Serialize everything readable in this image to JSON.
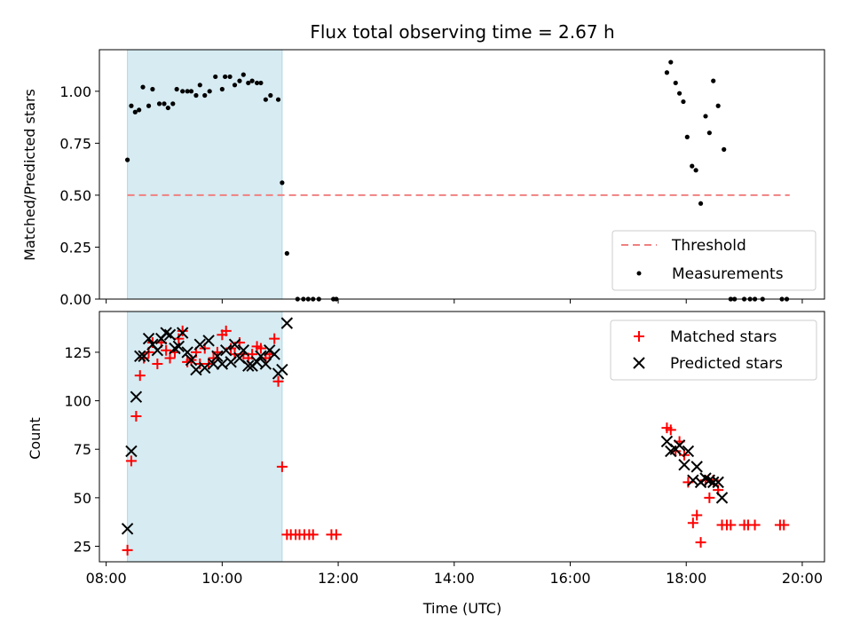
{
  "chart_data": [
    {
      "type": "scatter",
      "title": "Flux total observing time = 2.67 h",
      "xlabel": "",
      "ylabel": "Matched/Predicted stars",
      "xlim": [
        "07:53",
        "20:23"
      ],
      "ylim": [
        0.0,
        1.2
      ],
      "x_ticks": [
        "08:00",
        "10:00",
        "12:00",
        "14:00",
        "16:00",
        "18:00",
        "20:00"
      ],
      "y_ticks": [
        "0.00",
        "0.25",
        "0.50",
        "0.75",
        "1.00"
      ],
      "y_tick_values": [
        0.0,
        0.25,
        0.5,
        0.75,
        1.0
      ],
      "shaded_interval": {
        "start": "08:22",
        "end": "11:02",
        "color": "#add8e6"
      },
      "threshold": {
        "name": "Threshold",
        "value": 0.5,
        "from": "08:22",
        "to": "19:47",
        "color": "#f08080"
      },
      "legend_position": "lower-right",
      "grid": false,
      "series": [
        {
          "name": "Measurements",
          "color": "#000000",
          "points": [
            [
              "08:22",
              0.67
            ],
            [
              "08:26",
              0.93
            ],
            [
              "08:30",
              0.9
            ],
            [
              "08:34",
              0.91
            ],
            [
              "08:38",
              1.02
            ],
            [
              "08:44",
              0.93
            ],
            [
              "08:48",
              1.01
            ],
            [
              "08:55",
              0.94
            ],
            [
              "09:00",
              0.94
            ],
            [
              "09:04",
              0.92
            ],
            [
              "09:09",
              0.94
            ],
            [
              "09:13",
              1.01
            ],
            [
              "09:19",
              1.0
            ],
            [
              "09:24",
              1.0
            ],
            [
              "09:28",
              1.0
            ],
            [
              "09:33",
              0.98
            ],
            [
              "09:37",
              1.03
            ],
            [
              "09:42",
              0.98
            ],
            [
              "09:47",
              1.0
            ],
            [
              "09:53",
              1.07
            ],
            [
              "10:00",
              1.01
            ],
            [
              "10:03",
              1.07
            ],
            [
              "10:08",
              1.07
            ],
            [
              "10:13",
              1.03
            ],
            [
              "10:18",
              1.05
            ],
            [
              "10:22",
              1.08
            ],
            [
              "10:27",
              1.04
            ],
            [
              "10:31",
              1.05
            ],
            [
              "10:36",
              1.04
            ],
            [
              "10:40",
              1.04
            ],
            [
              "10:45",
              0.96
            ],
            [
              "10:50",
              0.98
            ],
            [
              "10:58",
              0.96
            ],
            [
              "11:02",
              0.56
            ],
            [
              "11:07",
              0.22
            ],
            [
              "11:18",
              0.0
            ],
            [
              "11:24",
              0.0
            ],
            [
              "11:29",
              0.0
            ],
            [
              "11:34",
              0.0
            ],
            [
              "11:40",
              0.0
            ],
            [
              "11:55",
              0.0
            ],
            [
              "11:58",
              0.0
            ],
            [
              "17:40",
              1.09
            ],
            [
              "17:44",
              1.14
            ],
            [
              "17:49",
              1.04
            ],
            [
              "17:53",
              0.99
            ],
            [
              "17:57",
              0.95
            ],
            [
              "18:01",
              0.78
            ],
            [
              "18:06",
              0.64
            ],
            [
              "18:10",
              0.62
            ],
            [
              "18:15",
              0.46
            ],
            [
              "18:20",
              0.88
            ],
            [
              "18:24",
              0.8
            ],
            [
              "18:28",
              1.05
            ],
            [
              "18:33",
              0.93
            ],
            [
              "18:39",
              0.72
            ],
            [
              "18:46",
              0.0
            ],
            [
              "18:50",
              0.0
            ],
            [
              "19:00",
              0.0
            ],
            [
              "19:06",
              0.0
            ],
            [
              "19:11",
              0.0
            ],
            [
              "19:19",
              0.0
            ],
            [
              "19:39",
              0.0
            ],
            [
              "19:44",
              0.0
            ]
          ]
        }
      ]
    },
    {
      "type": "scatter",
      "title": "",
      "xlabel": "Time (UTC)",
      "ylabel": "Count",
      "xlim": [
        "07:53",
        "20:23"
      ],
      "ylim": [
        17,
        146
      ],
      "x_ticks": [
        "08:00",
        "10:00",
        "12:00",
        "14:00",
        "16:00",
        "18:00",
        "20:00"
      ],
      "y_ticks": [
        "25",
        "50",
        "75",
        "100",
        "125"
      ],
      "y_tick_values": [
        25,
        50,
        75,
        100,
        125
      ],
      "shaded_interval": {
        "start": "08:22",
        "end": "11:02",
        "color": "#add8e6"
      },
      "legend_position": "upper-right",
      "grid": false,
      "series": [
        {
          "name": "Matched stars",
          "marker": "+",
          "color": "#ff0000",
          "points": [
            [
              "08:22",
              23
            ],
            [
              "08:26",
              69
            ],
            [
              "08:31",
              92
            ],
            [
              "08:35",
              113
            ],
            [
              "08:39",
              122
            ],
            [
              "08:44",
              125
            ],
            [
              "08:48",
              130
            ],
            [
              "08:53",
              119
            ],
            [
              "08:57",
              130
            ],
            [
              "09:02",
              126
            ],
            [
              "09:06",
              122
            ],
            [
              "09:11",
              125
            ],
            [
              "09:15",
              132
            ],
            [
              "09:19",
              136
            ],
            [
              "09:24",
              120
            ],
            [
              "09:28",
              121
            ],
            [
              "09:33",
              125
            ],
            [
              "09:37",
              119
            ],
            [
              "09:42",
              127
            ],
            [
              "09:46",
              119
            ],
            [
              "09:51",
              122
            ],
            [
              "09:55",
              125
            ],
            [
              "10:00",
              134
            ],
            [
              "10:04",
              136
            ],
            [
              "10:09",
              127
            ],
            [
              "10:13",
              124
            ],
            [
              "10:18",
              130
            ],
            [
              "10:22",
              124
            ],
            [
              "10:27",
              122
            ],
            [
              "10:31",
              124
            ],
            [
              "10:36",
              128
            ],
            [
              "10:40",
              127
            ],
            [
              "10:45",
              122
            ],
            [
              "10:49",
              124
            ],
            [
              "10:54",
              132
            ],
            [
              "10:58",
              110
            ],
            [
              "11:02",
              66
            ],
            [
              "11:07",
              31
            ],
            [
              "11:11",
              31
            ],
            [
              "11:16",
              31
            ],
            [
              "11:20",
              31
            ],
            [
              "11:25",
              31
            ],
            [
              "11:30",
              31
            ],
            [
              "11:34",
              31
            ],
            [
              "11:53",
              31
            ],
            [
              "11:58",
              31
            ],
            [
              "17:40",
              86
            ],
            [
              "17:44",
              85
            ],
            [
              "17:49",
              74
            ],
            [
              "17:53",
              79
            ],
            [
              "17:58",
              72
            ],
            [
              "18:02",
              58
            ],
            [
              "18:07",
              37
            ],
            [
              "18:11",
              41
            ],
            [
              "18:15",
              27
            ],
            [
              "18:20",
              59
            ],
            [
              "18:24",
              50
            ],
            [
              "18:28",
              59
            ],
            [
              "18:33",
              54
            ],
            [
              "18:37",
              36
            ],
            [
              "18:42",
              36
            ],
            [
              "18:46",
              36
            ],
            [
              "19:00",
              36
            ],
            [
              "19:04",
              36
            ],
            [
              "19:11",
              36
            ],
            [
              "19:37",
              36
            ],
            [
              "19:41",
              36
            ]
          ]
        },
        {
          "name": "Predicted stars",
          "marker": "x",
          "color": "#000000",
          "points": [
            [
              "08:22",
              34
            ],
            [
              "08:26",
              74
            ],
            [
              "08:31",
              102
            ],
            [
              "08:35",
              123
            ],
            [
              "08:39",
              123
            ],
            [
              "08:44",
              132
            ],
            [
              "08:48",
              129
            ],
            [
              "08:53",
              126
            ],
            [
              "08:57",
              132
            ],
            [
              "09:02",
              135
            ],
            [
              "09:06",
              134
            ],
            [
              "09:11",
              127
            ],
            [
              "09:15",
              128
            ],
            [
              "09:19",
              135
            ],
            [
              "09:24",
              125
            ],
            [
              "09:28",
              121
            ],
            [
              "09:33",
              116
            ],
            [
              "09:37",
              129
            ],
            [
              "09:42",
              117
            ],
            [
              "09:46",
              131
            ],
            [
              "09:51",
              119
            ],
            [
              "09:55",
              123
            ],
            [
              "10:00",
              119
            ],
            [
              "10:04",
              126
            ],
            [
              "10:09",
              120
            ],
            [
              "10:13",
              129
            ],
            [
              "10:18",
              122
            ],
            [
              "10:22",
              126
            ],
            [
              "10:27",
              118
            ],
            [
              "10:31",
              118
            ],
            [
              "10:36",
              120
            ],
            [
              "10:40",
              123
            ],
            [
              "10:45",
              119
            ],
            [
              "10:49",
              126
            ],
            [
              "10:54",
              124
            ],
            [
              "10:58",
              114
            ],
            [
              "11:02",
              116
            ],
            [
              "11:07",
              140
            ],
            [
              "17:40",
              79
            ],
            [
              "17:44",
              74
            ],
            [
              "17:49",
              75
            ],
            [
              "17:53",
              77
            ],
            [
              "17:58",
              67
            ],
            [
              "18:02",
              74
            ],
            [
              "18:07",
              59
            ],
            [
              "18:11",
              66
            ],
            [
              "18:15",
              58
            ],
            [
              "18:20",
              60
            ],
            [
              "18:24",
              59
            ],
            [
              "18:28",
              58
            ],
            [
              "18:33",
              58
            ],
            [
              "18:37",
              50
            ]
          ]
        }
      ]
    }
  ]
}
